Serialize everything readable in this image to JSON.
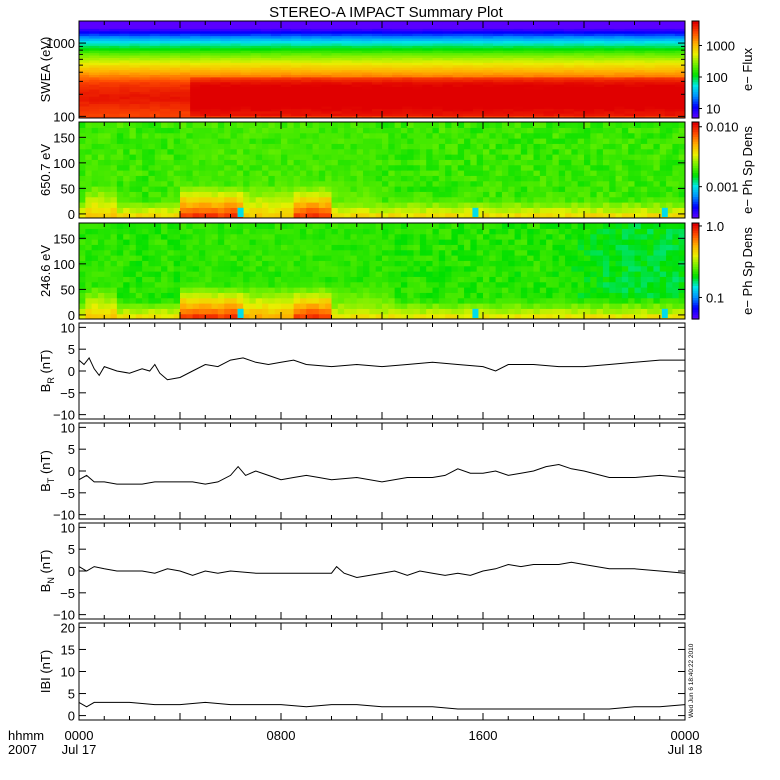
{
  "title": "STEREO-A IMPACT Summary Plot",
  "stamp": "Wed Jun  6 18:40:22 2010",
  "time_axis": {
    "row_labels": [
      "hhmm",
      "2007"
    ],
    "ticks": [
      {
        "label": "0000",
        "sub": "Jul 17",
        "hour": 0
      },
      {
        "label": "0800",
        "sub": "",
        "hour": 8
      },
      {
        "label": "1600",
        "sub": "",
        "hour": 16
      },
      {
        "label": "0000",
        "sub": "Jul 18",
        "hour": 24
      }
    ],
    "range_hours": [
      0,
      24
    ]
  },
  "colors": {
    "colormap": [
      "#5a00ff",
      "#0000ff",
      "#0090ff",
      "#00e8e8",
      "#00e000",
      "#70f000",
      "#e8f000",
      "#ffb000",
      "#ff5000",
      "#e00000"
    ]
  },
  "chart_data": [
    {
      "type": "heatmap",
      "ylabel": "SWEA (eV)",
      "yscale": "log",
      "ylim": [
        95,
        2000
      ],
      "yticks": [
        {
          "v": 100,
          "label": "100"
        },
        {
          "v": 1000,
          "label": "1000"
        }
      ],
      "colorbar": {
        "label": "e− Flux",
        "scale": "log",
        "range": [
          5,
          6000
        ],
        "ticks": [
          {
            "v": 10,
            "label": "10"
          },
          {
            "v": 100,
            "label": "100"
          },
          {
            "v": 1000,
            "label": "1000"
          }
        ]
      },
      "layers": [
        {
          "center": 1700,
          "log_value": 0.6
        },
        {
          "center": 1100,
          "log_value": 1.6
        },
        {
          "center": 700,
          "log_value": 2.4
        },
        {
          "center": 450,
          "log_value": 3.0
        },
        {
          "center": 280,
          "log_value": 3.55
        },
        {
          "center": 180,
          "log_value": 3.7
        },
        {
          "center": 110,
          "log_value": 3.5
        }
      ],
      "enhanced_interval_hours": [
        4.1,
        24
      ],
      "enhanced_energy_range": [
        100,
        350
      ]
    },
    {
      "type": "heatmap",
      "ylabel": "650.7 eV",
      "ylim": [
        -8,
        180
      ],
      "yticks": [
        {
          "v": 0,
          "label": "0"
        },
        {
          "v": 50,
          "label": "50"
        },
        {
          "v": 100,
          "label": "100"
        },
        {
          "v": 150,
          "label": "150"
        }
      ],
      "colorbar": {
        "label": "e− Ph Sp Dens",
        "scale": "log",
        "range": [
          0.0003,
          0.012
        ],
        "ticks": [
          {
            "v": 0.001,
            "label": "0.001"
          },
          {
            "v": 0.01,
            "label": "0.010"
          }
        ]
      },
      "base_level": 0.5,
      "hot_intervals": [
        {
          "start": 0.3,
          "end": 1.6,
          "strength": 0.75
        },
        {
          "start": 4.1,
          "end": 6.6,
          "strength": 0.95
        },
        {
          "start": 6.6,
          "end": 8.6,
          "strength": 0.75
        },
        {
          "start": 8.6,
          "end": 10.1,
          "strength": 0.95
        },
        {
          "start": 10.1,
          "end": 11.8,
          "strength": 0.6
        }
      ],
      "cold_spots_hours": [
        6.4,
        15.7,
        23.2
      ]
    },
    {
      "type": "heatmap",
      "ylabel": "246.6 eV",
      "ylim": [
        -8,
        180
      ],
      "yticks": [
        {
          "v": 0,
          "label": "0"
        },
        {
          "v": 50,
          "label": "50"
        },
        {
          "v": 100,
          "label": "100"
        },
        {
          "v": 150,
          "label": "150"
        }
      ],
      "colorbar": {
        "label": "e− Ph Sp Dens",
        "scale": "log",
        "range": [
          0.05,
          1.1
        ],
        "ticks": [
          {
            "v": 0.1,
            "label": "0.1"
          },
          {
            "v": 1.0,
            "label": "1.0"
          }
        ]
      },
      "base_level": 0.48,
      "hot_intervals": [
        {
          "start": 0.3,
          "end": 1.6,
          "strength": 0.75
        },
        {
          "start": 4.1,
          "end": 6.6,
          "strength": 0.95
        },
        {
          "start": 6.6,
          "end": 8.6,
          "strength": 0.8
        },
        {
          "start": 8.6,
          "end": 10.1,
          "strength": 0.95
        },
        {
          "start": 10.1,
          "end": 12.5,
          "strength": 0.65
        }
      ],
      "cold_spots_hours": [
        6.4,
        15.7,
        23.2
      ]
    },
    {
      "type": "line",
      "ylabel": "B",
      "ylabel_sub": "R",
      "ylabel_unit": " (nT)",
      "ylim": [
        -11,
        11
      ],
      "yticks": [
        {
          "v": -10,
          "label": "−10"
        },
        {
          "v": -5,
          "label": "−5"
        },
        {
          "v": 0,
          "label": "0"
        },
        {
          "v": 5,
          "label": "5"
        },
        {
          "v": 10,
          "label": "10"
        }
      ],
      "x": [
        0,
        0.2,
        0.4,
        0.6,
        0.8,
        1.0,
        1.5,
        2.0,
        2.5,
        2.8,
        3.0,
        3.2,
        3.5,
        4.0,
        4.5,
        5.0,
        5.5,
        6.0,
        6.5,
        7.0,
        7.5,
        8.0,
        8.5,
        9.0,
        10.0,
        11.0,
        12.0,
        13.0,
        14.0,
        15.0,
        16.0,
        16.5,
        17.0,
        18.0,
        19.0,
        20.0,
        21.0,
        22.0,
        23.0,
        24.0
      ],
      "y": [
        2.5,
        1.5,
        3.0,
        0.5,
        -1.0,
        1.0,
        0.0,
        -0.5,
        0.5,
        0.0,
        1.5,
        -0.5,
        -2.0,
        -1.5,
        0.0,
        1.5,
        1.0,
        2.5,
        3.0,
        2.0,
        1.5,
        2.0,
        2.5,
        1.5,
        1.0,
        1.5,
        1.0,
        1.5,
        2.0,
        1.5,
        1.0,
        0.0,
        1.5,
        1.5,
        1.0,
        1.0,
        1.5,
        2.0,
        2.5,
        2.5
      ]
    },
    {
      "type": "line",
      "ylabel": "B",
      "ylabel_sub": "T",
      "ylabel_unit": " (nT)",
      "ylim": [
        -11,
        11
      ],
      "yticks": [
        {
          "v": -10,
          "label": "−10"
        },
        {
          "v": -5,
          "label": "−5"
        },
        {
          "v": 0,
          "label": "0"
        },
        {
          "v": 5,
          "label": "5"
        },
        {
          "v": 10,
          "label": "10"
        }
      ],
      "x": [
        0,
        0.3,
        0.6,
        1.0,
        1.5,
        2.0,
        2.5,
        3.0,
        3.5,
        4.0,
        4.5,
        5.0,
        5.5,
        6.0,
        6.3,
        6.6,
        7.0,
        7.5,
        8.0,
        8.5,
        9.0,
        9.5,
        10.0,
        11.0,
        12.0,
        13.0,
        14.0,
        14.5,
        15.0,
        15.5,
        16.0,
        16.5,
        17.0,
        17.5,
        18.0,
        18.5,
        19.0,
        19.5,
        20.0,
        21.0,
        22.0,
        23.0,
        24.0
      ],
      "y": [
        -2.0,
        -1.0,
        -2.5,
        -2.5,
        -3.0,
        -3.0,
        -3.0,
        -2.5,
        -2.5,
        -2.5,
        -2.5,
        -3.0,
        -2.5,
        -1.0,
        1.0,
        -1.0,
        0.0,
        -1.0,
        -2.0,
        -1.5,
        -1.0,
        -1.5,
        -2.0,
        -1.5,
        -2.5,
        -1.5,
        -1.5,
        -1.0,
        0.5,
        -0.5,
        -0.5,
        0.0,
        -1.0,
        -0.5,
        0.0,
        1.0,
        1.5,
        0.5,
        0.0,
        -1.5,
        -1.5,
        -1.0,
        -1.5
      ]
    },
    {
      "type": "line",
      "ylabel": "B",
      "ylabel_sub": "N",
      "ylabel_unit": " (nT)",
      "ylim": [
        -11,
        11
      ],
      "yticks": [
        {
          "v": -10,
          "label": "−10"
        },
        {
          "v": -5,
          "label": "−5"
        },
        {
          "v": 0,
          "label": "0"
        },
        {
          "v": 5,
          "label": "5"
        },
        {
          "v": 10,
          "label": "10"
        }
      ],
      "x": [
        0,
        0.3,
        0.6,
        1.0,
        1.5,
        2.0,
        2.5,
        3.0,
        3.5,
        4.0,
        4.5,
        5.0,
        5.5,
        6.0,
        7.0,
        8.0,
        9.0,
        10.0,
        10.2,
        10.5,
        11.0,
        11.5,
        12.0,
        12.5,
        13.0,
        13.5,
        14.0,
        14.5,
        15.0,
        15.5,
        16.0,
        16.5,
        17.0,
        17.5,
        18.0,
        18.5,
        19.0,
        19.5,
        20.0,
        21.0,
        22.0,
        23.0,
        24.0
      ],
      "y": [
        1.0,
        0.0,
        1.0,
        0.5,
        0.0,
        0.0,
        0.0,
        -0.5,
        0.5,
        0.0,
        -1.0,
        0.0,
        -0.5,
        0.0,
        -0.5,
        -0.5,
        -0.5,
        -0.5,
        1.0,
        -0.5,
        -1.5,
        -1.0,
        -0.5,
        0.0,
        -1.0,
        0.0,
        -0.5,
        -1.0,
        -0.5,
        -1.0,
        0.0,
        0.5,
        1.5,
        1.0,
        1.5,
        1.5,
        1.5,
        2.0,
        1.5,
        0.5,
        0.5,
        0.0,
        -0.5
      ]
    },
    {
      "type": "line",
      "ylabel": "IBI (nT)",
      "ylim": [
        -1,
        21
      ],
      "yticks": [
        {
          "v": 0,
          "label": "0"
        },
        {
          "v": 5,
          "label": "5"
        },
        {
          "v": 10,
          "label": "10"
        },
        {
          "v": 15,
          "label": "15"
        },
        {
          "v": 20,
          "label": "20"
        }
      ],
      "x": [
        0,
        0.3,
        0.6,
        1.0,
        2.0,
        3.0,
        4.0,
        5.0,
        6.0,
        7.0,
        8.0,
        9.0,
        10.0,
        11.0,
        12.0,
        13.0,
        14.0,
        15.0,
        16.0,
        17.0,
        18.0,
        19.0,
        20.0,
        21.0,
        22.0,
        23.0,
        24.0
      ],
      "y": [
        3.0,
        2.0,
        3.0,
        3.0,
        3.0,
        2.5,
        2.5,
        3.0,
        2.5,
        2.5,
        2.5,
        2.0,
        2.5,
        2.5,
        2.0,
        2.0,
        2.0,
        1.5,
        1.5,
        1.5,
        1.5,
        1.5,
        1.5,
        1.5,
        2.0,
        2.0,
        2.5
      ]
    }
  ]
}
